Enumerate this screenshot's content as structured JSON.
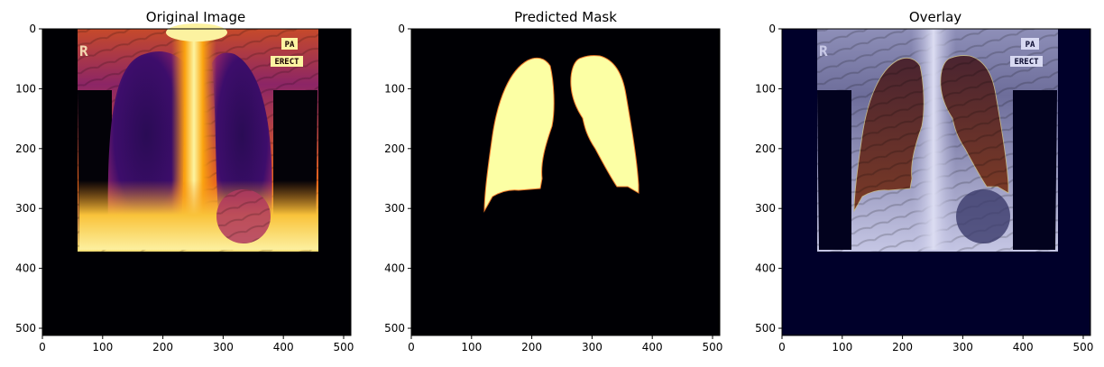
{
  "chart_data": [
    {
      "type": "image",
      "title": "Original Image",
      "xlim": [
        0,
        512
      ],
      "ylim": [
        512,
        0
      ],
      "xticks": [
        0,
        100,
        200,
        300,
        400,
        500
      ],
      "yticks": [
        0,
        100,
        200,
        300,
        400,
        500
      ],
      "xtick_labels": [
        "0",
        "100",
        "200",
        "300",
        "400",
        "500"
      ],
      "ytick_labels": [
        "0",
        "100",
        "200",
        "300",
        "400",
        "500"
      ],
      "colormap": "inferno",
      "image_annotations": [
        "R",
        "PA",
        "ERECT"
      ]
    },
    {
      "type": "image",
      "title": "Predicted Mask",
      "xlim": [
        0,
        512
      ],
      "ylim": [
        512,
        0
      ],
      "xticks": [
        0,
        100,
        200,
        300,
        400,
        500
      ],
      "yticks": [
        0,
        100,
        200,
        300,
        400,
        500
      ],
      "xtick_labels": [
        "0",
        "100",
        "200",
        "300",
        "400",
        "500"
      ],
      "ytick_labels": [
        "0",
        "100",
        "200",
        "300",
        "400",
        "500"
      ],
      "colormap": "inferno"
    },
    {
      "type": "image",
      "title": "Overlay",
      "xlim": [
        0,
        512
      ],
      "ylim": [
        512,
        0
      ],
      "xticks": [
        0,
        100,
        200,
        300,
        400,
        500
      ],
      "yticks": [
        0,
        100,
        200,
        300,
        400,
        500
      ],
      "xtick_labels": [
        "0",
        "100",
        "200",
        "300",
        "400",
        "500"
      ],
      "ytick_labels": [
        "0",
        "100",
        "200",
        "300",
        "400",
        "500"
      ],
      "colormap": "bone + mask",
      "image_annotations": [
        "R",
        "PA",
        "ERECT"
      ]
    }
  ],
  "colors": {
    "background": "#000004",
    "mask_fill": "#fcffa4",
    "overlay_bg": "#00002a",
    "overlay_mask": "#7a3a22"
  }
}
